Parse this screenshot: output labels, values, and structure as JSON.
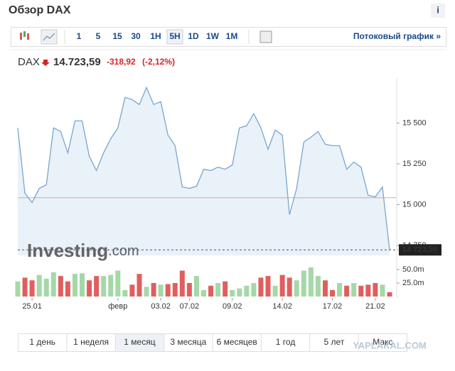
{
  "title": "Обзор DAX",
  "info_icon": "i",
  "toolbar": {
    "intervals": [
      "1",
      "5",
      "15",
      "30",
      "1H",
      "5H",
      "1D",
      "1W",
      "1M"
    ],
    "active": "5H",
    "streaming_link": "Потоковый график »"
  },
  "quote": {
    "symbol": "DAX",
    "price": "14.723,59",
    "change": "-318,92",
    "change_pct": "(-2,12%)"
  },
  "watermark": [
    "Investing",
    ".com"
  ],
  "ranges": {
    "tabs": [
      "1 день",
      "1 неделя",
      "1 месяц",
      "3 месяца",
      "6 месяцев",
      "1 год",
      "5 лет",
      "Макс"
    ],
    "active": "1 месяц"
  },
  "site_watermark": "YAPLAKAL.COM",
  "chart_data": {
    "type": "line",
    "categories": [
      null,
      null,
      "25.01",
      null,
      null,
      null,
      null,
      null,
      null,
      null,
      null,
      null,
      null,
      null,
      "февр",
      null,
      null,
      null,
      null,
      null,
      "03.02",
      null,
      null,
      null,
      "07.02",
      null,
      null,
      null,
      null,
      null,
      "09.02",
      null,
      null,
      null,
      null,
      null,
      null,
      "14.02",
      null,
      null,
      null,
      null,
      null,
      null,
      "17.02",
      null,
      null,
      null,
      null,
      null,
      "21.02",
      null,
      null
    ],
    "series": [
      {
        "name": "DAX",
        "color": "#7aa6cc",
        "area_color": "#e9f1f9",
        "values": [
          15470,
          15070,
          15013,
          15100,
          15122,
          15470,
          15448,
          15317,
          15513,
          15513,
          15296,
          15209,
          15317,
          15404,
          15470,
          15657,
          15643,
          15613,
          15717,
          15613,
          15630,
          15426,
          15361,
          15109,
          15100,
          15113,
          15217,
          15209,
          15230,
          15217,
          15243,
          15470,
          15483,
          15557,
          15470,
          15339,
          15457,
          15426,
          14939,
          15100,
          15383,
          15413,
          15448,
          15370,
          15361,
          15361,
          15217,
          15261,
          15230,
          15057,
          15048,
          15109,
          14723.59
        ]
      },
      {
        "name": "volume",
        "axis": "y2",
        "up_color": "#a5d8a7",
        "down_color": "#df5f5f",
        "values": [
          28,
          35,
          30,
          40,
          33,
          45,
          38,
          28,
          42,
          43,
          30,
          38,
          38,
          40,
          48,
          12,
          22,
          42,
          18,
          25,
          22,
          23,
          25,
          48,
          25,
          38,
          12,
          20,
          25,
          28,
          12,
          15,
          20,
          25,
          35,
          38,
          20,
          40,
          35,
          30,
          48,
          54,
          38,
          30,
          12,
          25,
          20,
          25,
          20,
          22,
          25,
          22,
          8
        ]
      }
    ],
    "ylim": [
      14690,
      15775
    ],
    "yticks": [
      {
        "value": 15500,
        "label": "15 500"
      },
      {
        "value": 15250,
        "label": "15 250"
      },
      {
        "value": 15000,
        "label": "15 000"
      },
      {
        "value": 14750,
        "label": "14 750"
      }
    ],
    "y2lim": [
      0,
      60
    ],
    "y2ticks": [
      {
        "value": 50,
        "label": "50.0m"
      },
      {
        "value": 25,
        "label": "25.0m"
      }
    ],
    "reference_line": {
      "value": 15042.51,
      "color": "#e8a0a0"
    },
    "last_price": {
      "value": 14723.59,
      "label": "14 723,59"
    }
  }
}
